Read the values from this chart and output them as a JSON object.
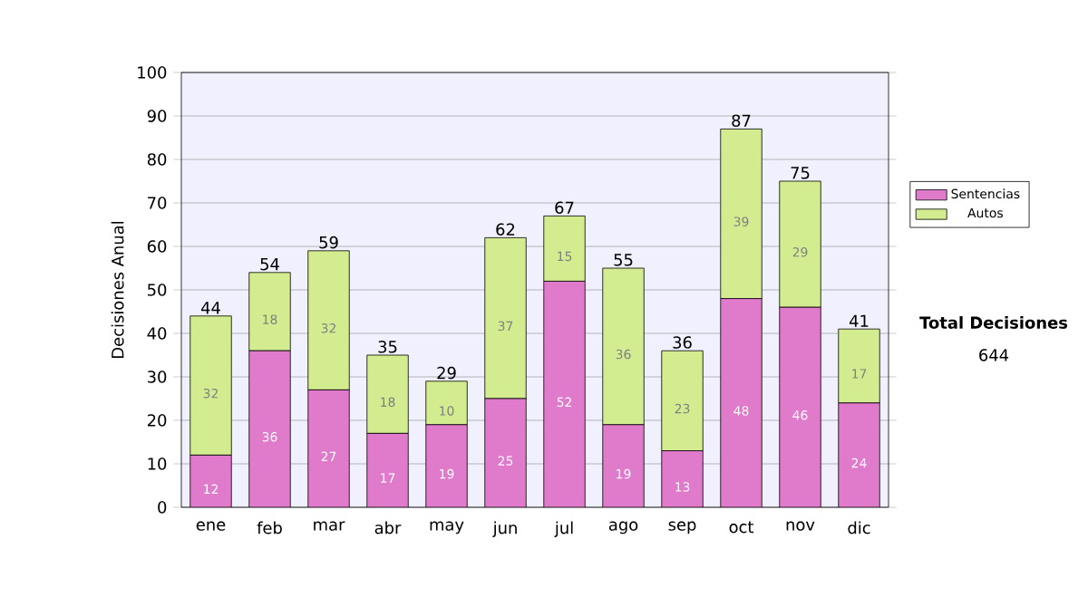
{
  "chart_data": {
    "type": "bar",
    "stacked": true,
    "ylabel": "Decisiones Anual",
    "categories": [
      "ene",
      "feb",
      "mar",
      "abr",
      "may",
      "jun",
      "jul",
      "ago",
      "sep",
      "oct",
      "nov",
      "dic"
    ],
    "series": [
      {
        "name": "Sentencias",
        "color": "#e07acb",
        "values": [
          12,
          36,
          27,
          17,
          19,
          25,
          52,
          19,
          13,
          48,
          46,
          24
        ]
      },
      {
        "name": "Autos",
        "color": "#d3ec8f",
        "values": [
          32,
          18,
          32,
          18,
          10,
          37,
          15,
          36,
          23,
          39,
          29,
          17
        ]
      }
    ],
    "totals": [
      "44",
      "54",
      "59",
      "35",
      "29",
      "62",
      "67",
      "55",
      "36",
      "87",
      "75",
      "41"
    ],
    "data_labels": true,
    "ylim": [
      0,
      100
    ],
    "yticks": [
      0,
      10,
      20,
      30,
      40,
      50,
      60,
      70,
      80,
      90,
      100
    ],
    "grid": "y",
    "legend": "right",
    "annotations": [
      "Total Decisiones",
      "644"
    ]
  }
}
